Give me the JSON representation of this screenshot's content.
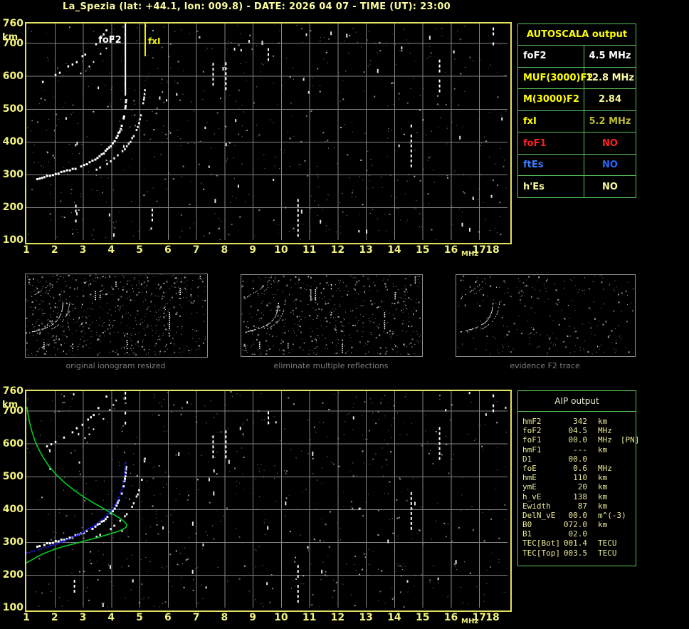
{
  "title": "La_Spezia (lat: +44.1, lon: 009.8) - DATE: 2026 04 07 - TIME (UT): 23:00",
  "axes": {
    "x_ticks": [
      "1",
      "2",
      "3",
      "4",
      "5",
      "6",
      "7",
      "8",
      "9",
      "10",
      "11",
      "12",
      "13",
      "14",
      "15",
      "16",
      "17",
      "18"
    ],
    "x_unit": "MHz",
    "y_ticks": [
      "760",
      "700",
      "600",
      "500",
      "400",
      "300",
      "200",
      "100"
    ],
    "y_unit": "km"
  },
  "markers": {
    "fof2_label": "foF2",
    "fxl_label": "fxI"
  },
  "autoscala_table": {
    "header": "AUTOSCALA output",
    "rows": [
      {
        "label": "foF2",
        "value": "4.5 MHz",
        "label_color": "#ffffff",
        "value_color": "#ffffff"
      },
      {
        "label": "MUF(3000)F2",
        "value": "12.8 MHz",
        "label_color": "#ffff00",
        "value_color": "#fafaa8"
      },
      {
        "label": "M(3000)F2",
        "value": "2.84",
        "label_color": "#ffff00",
        "value_color": "#f5f590"
      },
      {
        "label": "fxI",
        "value": "5.2 MHz",
        "label_color": "#ffff00",
        "value_color": "#bcbc2e"
      },
      {
        "label": "foF1",
        "value": "NO",
        "label_color": "#ff1e1e",
        "value_color": "#ff1e1e"
      },
      {
        "label": "ftEs",
        "value": "NO",
        "label_color": "#3a7cff",
        "value_color": "#2569ff"
      },
      {
        "label": "h'Es",
        "value": "NO",
        "label_color": "#fafaa0",
        "value_color": "#fafaa0"
      }
    ]
  },
  "aip_table": {
    "header": "AIP output",
    "rows": [
      {
        "label": "hmF2",
        "value": "342",
        "unit": "km",
        "extra": ""
      },
      {
        "label": "foF2",
        "value": "04.5",
        "unit": "MHz",
        "extra": ""
      },
      {
        "label": "foF1",
        "value": "00.0",
        "unit": "MHz",
        "extra": "[PN]"
      },
      {
        "label": "hmF1",
        "value": "---",
        "unit": "km",
        "extra": ""
      },
      {
        "label": "D1",
        "value": "00.0",
        "unit": "",
        "extra": ""
      },
      {
        "label": "foE",
        "value": "0.6",
        "unit": "MHz",
        "extra": ""
      },
      {
        "label": "hmE",
        "value": "110",
        "unit": "km",
        "extra": ""
      },
      {
        "label": "ymE",
        "value": "20",
        "unit": "km",
        "extra": ""
      },
      {
        "label": "h_vE",
        "value": "138",
        "unit": "km",
        "extra": ""
      },
      {
        "label": "Ewidth",
        "value": "87",
        "unit": "km",
        "extra": ""
      },
      {
        "label": "DelN_vE",
        "value": "00.0",
        "unit": "m^(-3)",
        "extra": ""
      },
      {
        "label": "B0",
        "value": "072.0",
        "unit": "km",
        "extra": ""
      },
      {
        "label": "B1",
        "value": "02.0",
        "unit": "",
        "extra": ""
      },
      {
        "label": "TEC[Bot]",
        "value": "001.4",
        "unit": "TECU",
        "extra": ""
      },
      {
        "label": "TEC[Top]",
        "value": "003.5",
        "unit": "TECU",
        "extra": ""
      }
    ]
  },
  "thumbnails": [
    {
      "caption": "original ionogram resized",
      "noise": 640,
      "dashes": 26,
      "second_hop": true,
      "streaks": true,
      "seed": 7
    },
    {
      "caption": "eliminate multiple reflections",
      "noise": 520,
      "dashes": 20,
      "second_hop": true,
      "streaks": true,
      "seed": 11
    },
    {
      "caption": "evidence F2 trace",
      "noise": 250,
      "dashes": 8,
      "second_hop": true,
      "streaks": false,
      "seed": 13
    }
  ],
  "chart_data": {
    "type": "scatter",
    "xlabel": "MHz",
    "ylabel": "km",
    "xlim": [
      1,
      18
    ],
    "ylim": [
      100,
      760
    ],
    "grid": true,
    "markers": {
      "foF2_MHz": 4.5,
      "fxI_MHz": 5.2
    },
    "f2_trace_o": [
      [
        1.35,
        290
      ],
      [
        1.6,
        296
      ],
      [
        1.9,
        302
      ],
      [
        2.2,
        309
      ],
      [
        2.5,
        316
      ],
      [
        2.8,
        325
      ],
      [
        3.1,
        336
      ],
      [
        3.4,
        350
      ],
      [
        3.7,
        368
      ],
      [
        3.95,
        390
      ],
      [
        4.15,
        415
      ],
      [
        4.3,
        443
      ],
      [
        4.4,
        472
      ],
      [
        4.46,
        505
      ],
      [
        4.5,
        540
      ]
    ],
    "f2_trace_x": [
      [
        3.45,
        318
      ],
      [
        3.7,
        330
      ],
      [
        3.95,
        344
      ],
      [
        4.2,
        360
      ],
      [
        4.45,
        380
      ],
      [
        4.65,
        403
      ],
      [
        4.82,
        430
      ],
      [
        4.95,
        460
      ],
      [
        5.05,
        495
      ],
      [
        5.12,
        530
      ],
      [
        5.17,
        568
      ]
    ],
    "second_hop_o": [
      [
        1.55,
        585
      ],
      [
        1.85,
        600
      ],
      [
        2.15,
        614
      ],
      [
        2.45,
        630
      ],
      [
        2.75,
        648
      ],
      [
        3.05,
        668
      ],
      [
        3.35,
        692
      ],
      [
        3.6,
        718
      ],
      [
        3.8,
        745
      ],
      [
        3.9,
        760
      ]
    ],
    "second_hop_x": [
      [
        2.9,
        610
      ],
      [
        3.2,
        632
      ],
      [
        3.5,
        658
      ],
      [
        3.8,
        688
      ],
      [
        4.05,
        718
      ],
      [
        4.25,
        745
      ],
      [
        4.35,
        760
      ]
    ],
    "rfi_streaks_top": [
      [
        2.75,
        152,
        208
      ],
      [
        5.45,
        152,
        196
      ],
      [
        7.6,
        556,
        640
      ],
      [
        8.05,
        556,
        642
      ],
      [
        9.55,
        640,
        700
      ],
      [
        10.6,
        112,
        225
      ],
      [
        14.6,
        320,
        452
      ],
      [
        15.6,
        556,
        650
      ],
      [
        17.5,
        694,
        748
      ]
    ],
    "rfi_streaks_bottom": [
      [
        2.7,
        145,
        200
      ],
      [
        4.5,
        652,
        758
      ],
      [
        7.6,
        560,
        640
      ],
      [
        8.05,
        556,
        640
      ],
      [
        9.55,
        640,
        698
      ],
      [
        10.6,
        110,
        230
      ],
      [
        14.6,
        330,
        452
      ],
      [
        15.6,
        553,
        650
      ],
      [
        17.5,
        690,
        750
      ]
    ],
    "profile_green": [
      [
        1.02,
        712
      ],
      [
        1.06,
        688
      ],
      [
        1.12,
        662
      ],
      [
        1.2,
        636
      ],
      [
        1.3,
        610
      ],
      [
        1.43,
        584
      ],
      [
        1.6,
        557
      ],
      [
        1.8,
        531
      ],
      [
        2.05,
        506
      ],
      [
        2.35,
        481
      ],
      [
        2.7,
        457
      ],
      [
        3.05,
        436
      ],
      [
        3.4,
        418
      ],
      [
        3.75,
        401
      ],
      [
        4.05,
        386
      ],
      [
        4.3,
        373
      ],
      [
        4.45,
        363
      ],
      [
        4.55,
        353
      ],
      [
        4.52,
        345
      ],
      [
        4.4,
        338
      ],
      [
        4.15,
        330
      ],
      [
        3.85,
        322
      ],
      [
        3.5,
        313
      ],
      [
        3.1,
        304
      ],
      [
        2.7,
        295
      ],
      [
        2.3,
        286
      ],
      [
        1.95,
        276
      ],
      [
        1.65,
        266
      ],
      [
        1.4,
        256
      ],
      [
        1.2,
        246
      ],
      [
        1.05,
        239
      ],
      [
        1.0,
        236
      ]
    ],
    "autoscaled_trace_blue": [
      [
        1.0,
        269
      ],
      [
        1.25,
        275
      ],
      [
        1.5,
        281
      ],
      [
        1.75,
        288
      ],
      [
        2.0,
        296
      ],
      [
        2.25,
        304
      ],
      [
        2.5,
        312
      ],
      [
        2.75,
        321
      ],
      [
        3.0,
        332
      ],
      [
        3.25,
        345
      ],
      [
        3.5,
        360
      ],
      [
        3.75,
        377
      ],
      [
        3.95,
        396
      ],
      [
        4.1,
        414
      ],
      [
        4.25,
        438
      ],
      [
        4.35,
        462
      ],
      [
        4.42,
        490
      ],
      [
        4.46,
        518
      ],
      [
        4.49,
        548
      ]
    ]
  },
  "colors": {
    "plot_border": "#e2e25e",
    "grid": "#858585",
    "axis_text": "#f2f27c",
    "trace_white": "#ffffff",
    "profile_green": "#00cc22",
    "fit_blue": "#1a1aff",
    "table_border": "#58c858",
    "marker_fof2": "#ffffff",
    "marker_fxl": "#f0f000"
  }
}
